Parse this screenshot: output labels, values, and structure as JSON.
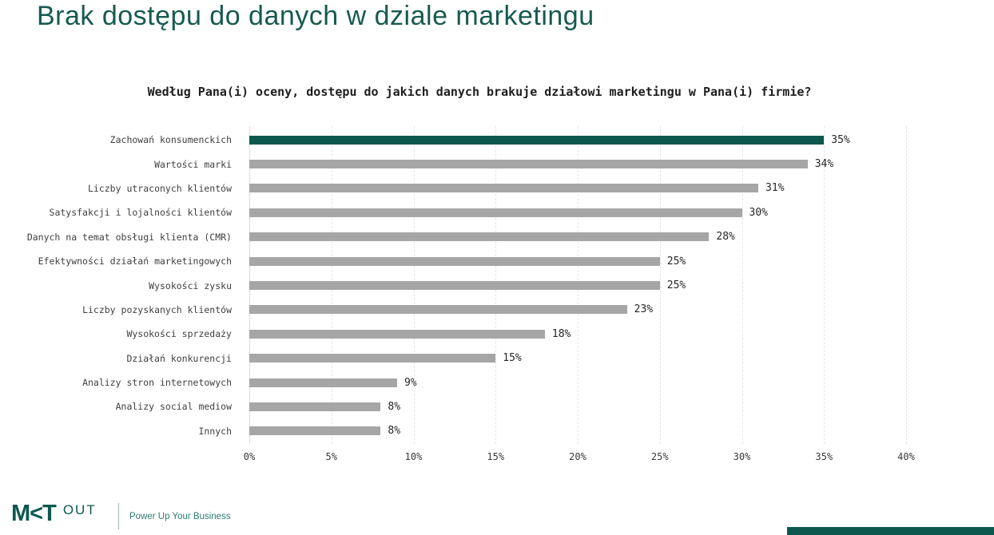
{
  "page": {
    "title": "Brak dostępu do danych w dziale marketingu"
  },
  "chart_data": {
    "type": "bar",
    "orientation": "horizontal",
    "title": "Według Pana(i) oceny, dostępu do jakich danych brakuje działowi marketingu w Pana(i) firmie?",
    "categories": [
      "Zachowań konsumenckich",
      "Wartości marki",
      "Liczby utraconych klientów",
      "Satysfakcji i lojalności klientów",
      "Danych na temat obsługi klienta (CMR)",
      "Efektywności działań marketingowych",
      "Wysokości zysku",
      "Liczby pozyskanych klientów",
      "Wysokości sprzedaży",
      "Działań konkurencji",
      "Analizy stron internetowych",
      "Analizy social mediow",
      "Innych"
    ],
    "values": [
      35,
      34,
      31,
      30,
      28,
      25,
      25,
      23,
      18,
      15,
      9,
      8,
      8
    ],
    "value_labels": [
      "35%",
      "34%",
      "31%",
      "30%",
      "28%",
      "25%",
      "25%",
      "23%",
      "18%",
      "15%",
      "9%",
      "8%",
      "8%"
    ],
    "xlim": [
      0,
      40
    ],
    "x_ticks": [
      "0%",
      "5%",
      "10%",
      "15%",
      "20%",
      "25%",
      "30%",
      "35%",
      "40%"
    ],
    "grid": "vertical-dashed",
    "legend": "none",
    "highlight_index": 0,
    "colors": {
      "highlight_bar": "#0d584e",
      "default_bar": "#a6a6a6",
      "gridline": "#e5e5f0"
    }
  },
  "footer": {
    "logo_primary": "M<T",
    "logo_secondary": "OUT",
    "tagline": "Power Up Your Business"
  },
  "colors": {
    "title_teal": "#175a50",
    "accent_dark_teal": "#0d584e",
    "bar_gray": "#a6a6a6"
  }
}
